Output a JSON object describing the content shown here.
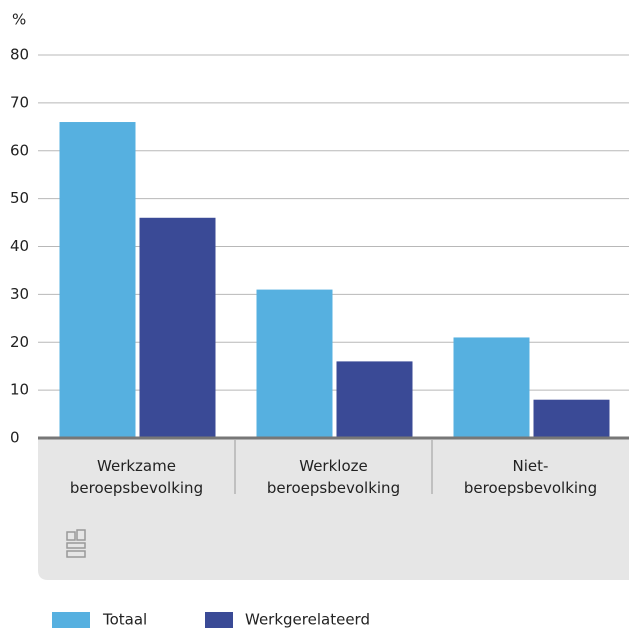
{
  "chart_data": {
    "type": "bar",
    "y_unit": "%",
    "categories": [
      [
        "Werkzame",
        "beroepsbevolking"
      ],
      [
        "Werkloze",
        "beroepsbevolking"
      ],
      [
        "Niet-",
        "beroepsbevolking"
      ]
    ],
    "series": [
      {
        "name": "Totaal",
        "color": "#56b0e0",
        "values": [
          66,
          31,
          21
        ]
      },
      {
        "name": "Werkgerelateerd",
        "color": "#3a4a96",
        "values": [
          46,
          16,
          8
        ]
      }
    ],
    "ylim": [
      0,
      80
    ],
    "yticks": [
      0,
      10,
      20,
      30,
      40,
      50,
      60,
      70,
      80
    ],
    "grid": true
  }
}
